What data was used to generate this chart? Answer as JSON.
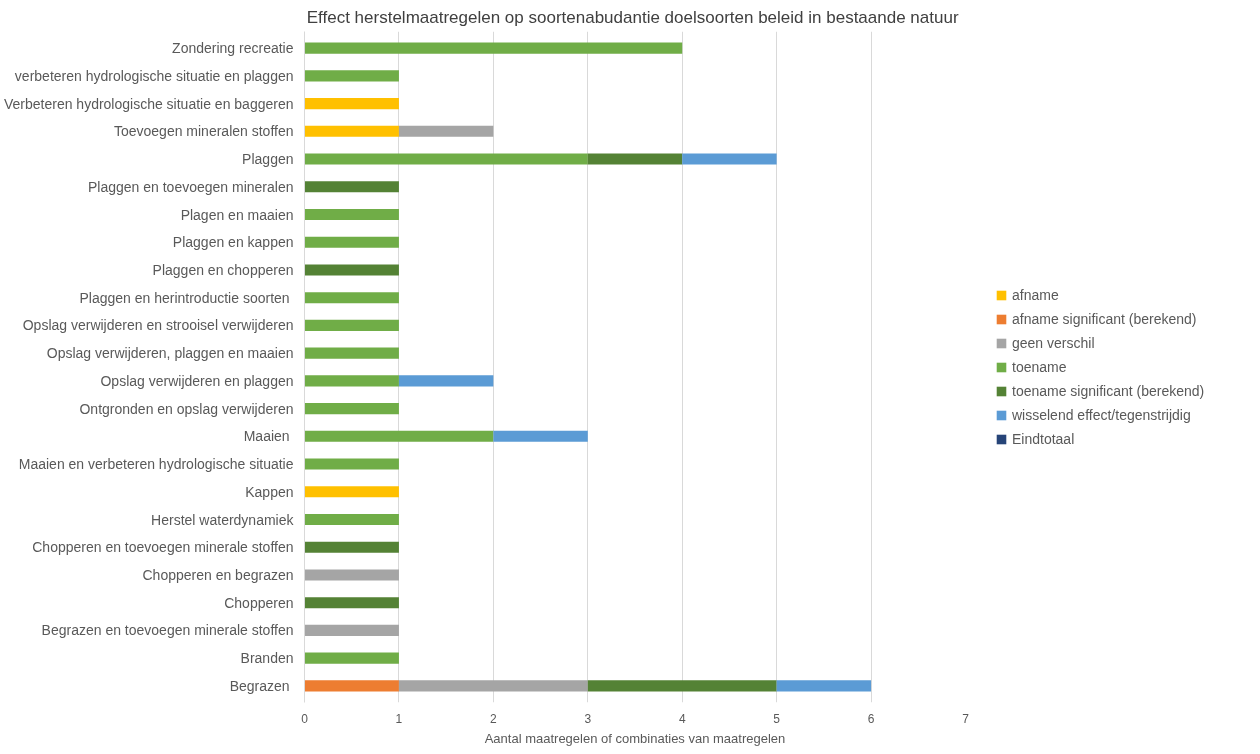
{
  "chart_data": {
    "type": "bar",
    "orientation": "horizontal",
    "stacked": true,
    "title": "Effect herstelmaatregelen op soortenabudantie  doelsoorten beleid in bestaande natuur",
    "xlabel": "Aantal maatregelen of combinaties van maatregelen",
    "categories": [
      "Zondering recreatie",
      "verbeteren hydrologische situatie en plaggen",
      "Verbeteren hydrologische situatie en baggeren",
      "Toevoegen mineralen stoffen",
      "Plaggen",
      "Plaggen en toevoegen mineralen",
      "Plagen en maaien",
      "Plaggen en kappen",
      "Plaggen en chopperen",
      "Plaggen en herintroductie soorten ",
      "Opslag verwijderen en strooisel verwijderen",
      "Opslag verwijderen, plaggen en maaien",
      "Opslag verwijderen en plaggen",
      "Ontgronden en opslag verwijderen",
      "Maaien ",
      "Maaien en verbeteren hydrologische situatie",
      "Kappen",
      "Herstel waterdynamiek",
      "Chopperen en toevoegen minerale stoffen",
      "Chopperen en begrazen",
      "Chopperen",
      "Begrazen en toevoegen minerale stoffen",
      "Branden",
      "Begrazen "
    ],
    "series": [
      {
        "name": "afname",
        "color": "#ffc000",
        "values": [
          null,
          null,
          1,
          1,
          null,
          null,
          null,
          null,
          null,
          null,
          null,
          null,
          null,
          null,
          null,
          null,
          1,
          null,
          null,
          null,
          null,
          null,
          null,
          null
        ]
      },
      {
        "name": "afname significant (berekend)",
        "color": "#ed7d31",
        "values": [
          null,
          null,
          null,
          null,
          null,
          null,
          null,
          null,
          null,
          null,
          null,
          null,
          null,
          null,
          null,
          null,
          null,
          null,
          null,
          null,
          null,
          null,
          null,
          1
        ]
      },
      {
        "name": "geen verschil",
        "color": "#a5a5a5",
        "values": [
          null,
          null,
          null,
          1,
          null,
          null,
          null,
          null,
          null,
          null,
          null,
          null,
          null,
          null,
          null,
          null,
          null,
          null,
          null,
          1,
          null,
          1,
          null,
          2
        ]
      },
      {
        "name": "toename",
        "color": "#70ad47",
        "values": [
          4,
          1,
          null,
          null,
          3,
          null,
          1,
          1,
          null,
          1,
          1,
          1,
          1,
          1,
          2,
          1,
          null,
          1,
          null,
          null,
          null,
          null,
          1,
          null
        ]
      },
      {
        "name": "toename significant (berekend)",
        "color": "#548235",
        "values": [
          null,
          null,
          null,
          null,
          1,
          1,
          null,
          null,
          1,
          null,
          null,
          null,
          null,
          null,
          null,
          null,
          null,
          null,
          1,
          null,
          1,
          null,
          null,
          2
        ]
      },
      {
        "name": "wisselend effect/tegenstrijdig",
        "color": "#5b9bd5",
        "values": [
          null,
          null,
          null,
          null,
          1,
          null,
          null,
          null,
          null,
          null,
          null,
          null,
          1,
          null,
          1,
          null,
          null,
          null,
          null,
          null,
          null,
          null,
          null,
          1
        ]
      },
      {
        "name": "Eindtotaal",
        "color": "#264478",
        "values": [
          null,
          null,
          null,
          null,
          null,
          null,
          null,
          null,
          null,
          null,
          null,
          null,
          null,
          null,
          null,
          null,
          null,
          null,
          null,
          null,
          null,
          null,
          null,
          null
        ]
      }
    ],
    "xlim": [
      0,
      7
    ],
    "xticks": [
      0,
      1,
      2,
      3,
      4,
      5,
      6,
      7
    ],
    "grid": "x",
    "legend": "right"
  }
}
